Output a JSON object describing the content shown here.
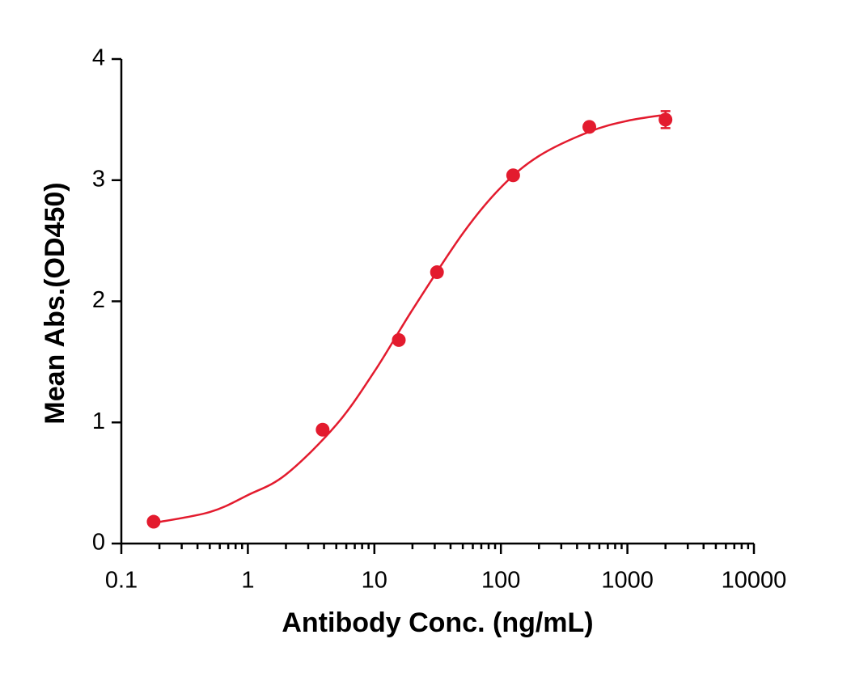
{
  "chart_data": {
    "type": "scatter",
    "x_label": "Antibody Conc. (ng/mL)",
    "y_label": "Mean Abs.(OD450)",
    "x": [
      0.18,
      3.9,
      15.6,
      31.25,
      125,
      500,
      2000
    ],
    "values": [
      0.18,
      0.94,
      1.68,
      2.24,
      3.04,
      3.44,
      3.5
    ],
    "errors": [
      null,
      null,
      null,
      null,
      null,
      null,
      0.07
    ],
    "color": "#e31b2e",
    "curve": {
      "x": [
        0.18,
        0.5,
        1,
        2,
        5,
        10,
        20,
        50,
        100,
        200,
        500,
        1000,
        2000
      ],
      "values": [
        0.17,
        0.26,
        0.4,
        0.57,
        0.98,
        1.42,
        1.93,
        2.56,
        2.94,
        3.2,
        3.4,
        3.49,
        3.54
      ]
    },
    "x_log": true,
    "xlim": [
      0.1,
      10000
    ],
    "xticks": [
      0.1,
      1,
      10,
      100,
      1000,
      10000
    ],
    "x_minor_ticks": [
      0.2,
      0.3,
      0.4,
      0.5,
      0.6,
      0.7,
      0.8,
      0.9,
      2,
      3,
      4,
      5,
      6,
      7,
      8,
      9,
      20,
      30,
      40,
      50,
      60,
      70,
      80,
      90,
      200,
      300,
      400,
      500,
      600,
      700,
      800,
      900,
      2000,
      3000,
      4000,
      5000,
      6000,
      7000,
      8000,
      9000
    ],
    "ylim": [
      0,
      4
    ],
    "yticks": [
      0,
      1,
      2,
      3,
      4
    ]
  }
}
